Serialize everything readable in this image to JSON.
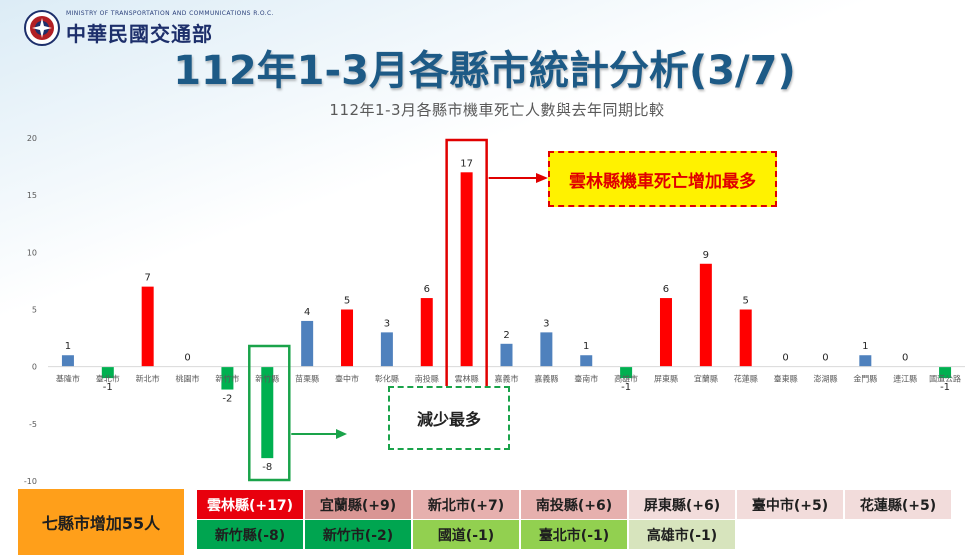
{
  "header": {
    "ministry_en": "MINISTRY OF TRANSPORTATION AND COMMUNICATIONS R.O.C.",
    "ministry_zh": "中華民國交通部",
    "title": "112年1-3月各縣市統計分析(3/7)",
    "subtitle": "112年1-3月各縣市機車死亡人數與去年同期比較"
  },
  "callouts": {
    "increase": "雲林縣機車死亡增加最多",
    "decrease": "減少最多"
  },
  "summary": {
    "label": "七縣市增加55人",
    "increase_row": [
      "雲林縣(+17)",
      "宜蘭縣(+9)",
      "新北市(+7)",
      "南投縣(+6)",
      "屏東縣(+6)",
      "臺中市(+5)",
      "花蓮縣(+5)"
    ],
    "decrease_row": [
      "新竹縣(-8)",
      "新竹市(-2)",
      "國道(-1)",
      "臺北市(-1)",
      "高雄市(-1)"
    ]
  },
  "colors": {
    "increase": "#ff0000",
    "decrease": "#00b050",
    "small_increase": "#4f81bd",
    "highlight_red": "#e00000",
    "highlight_green": "#1aa34a",
    "summary_label_bg": "#ff9f1a"
  },
  "chart_data": {
    "type": "bar",
    "categories": [
      "基隆市",
      "臺北市",
      "新北市",
      "桃園市",
      "新竹市",
      "新竹縣",
      "苗栗縣",
      "臺中市",
      "彰化縣",
      "南投縣",
      "雲林縣",
      "嘉義市",
      "嘉義縣",
      "臺南市",
      "高雄市",
      "屏東縣",
      "宜蘭縣",
      "花蓮縣",
      "臺東縣",
      "澎湖縣",
      "金門縣",
      "連江縣",
      "國道公路"
    ],
    "values": [
      1,
      -1,
      7,
      0,
      -2,
      -8,
      4,
      5,
      3,
      6,
      17,
      2,
      3,
      1,
      -1,
      6,
      9,
      5,
      0,
      0,
      1,
      0,
      -1
    ],
    "value_labels": [
      "1",
      "-1",
      "7",
      "0",
      "-2",
      "-8",
      "4",
      "5",
      "3",
      "6",
      "17",
      "2",
      "3",
      "1",
      "-1",
      "6",
      "9",
      "5",
      "0",
      "0",
      "1",
      "0",
      "-1"
    ],
    "colors": [
      "#4f81bd",
      "#00b050",
      "#ff0000",
      "#4f81bd",
      "#00b050",
      "#00b050",
      "#4f81bd",
      "#ff0000",
      "#4f81bd",
      "#ff0000",
      "#ff0000",
      "#4f81bd",
      "#4f81bd",
      "#4f81bd",
      "#00b050",
      "#ff0000",
      "#ff0000",
      "#ff0000",
      "#4f81bd",
      "#4f81bd",
      "#4f81bd",
      "#4f81bd",
      "#00b050"
    ],
    "y_ticks": [
      20,
      15,
      10,
      5,
      0,
      -5,
      -10
    ],
    "y_tick_labels": [
      "20",
      "15",
      "10",
      "5",
      "0",
      "-5",
      "-10"
    ],
    "ylim": [
      -10,
      20
    ],
    "grid": false
  }
}
